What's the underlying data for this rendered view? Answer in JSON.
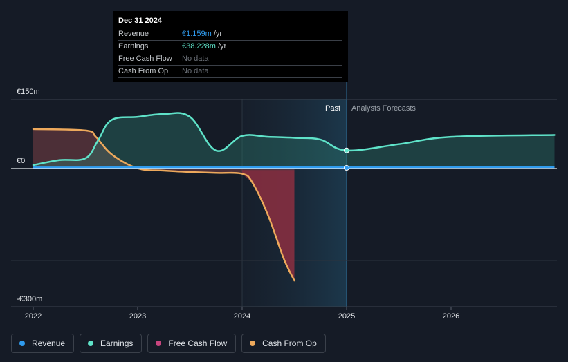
{
  "tooltip": {
    "date": "Dec 31 2024",
    "rows": [
      {
        "label": "Revenue",
        "value": "€1.159m",
        "unit": " /yr",
        "kind": "revenue"
      },
      {
        "label": "Earnings",
        "value": "€38.228m",
        "unit": " /yr",
        "kind": "earnings"
      },
      {
        "label": "Free Cash Flow",
        "value": "No data",
        "unit": "",
        "kind": "nodata"
      },
      {
        "label": "Cash From Op",
        "value": "No data",
        "unit": "",
        "kind": "nodata"
      }
    ]
  },
  "legend": [
    {
      "label": "Revenue",
      "color": "#2f9bee"
    },
    {
      "label": "Earnings",
      "color": "#5fe3c9"
    },
    {
      "label": "Free Cash Flow",
      "color": "#c8457e"
    },
    {
      "label": "Cash From Op",
      "color": "#eda95c"
    }
  ],
  "chart_data": {
    "type": "line",
    "title": "",
    "xlabel": "",
    "ylabel": "",
    "currency_unit": "€m",
    "x_ticks": [
      "2022",
      "2023",
      "2024",
      "2025",
      "2026"
    ],
    "y_ticks": [
      {
        "label": "€150m",
        "value": 150
      },
      {
        "label": "€0",
        "value": 0
      },
      {
        "label": "-€300m",
        "value": -300
      }
    ],
    "ylim": [
      -300,
      150
    ],
    "xlim": [
      2021.85,
      2026.99
    ],
    "region_labels": {
      "past": "Past",
      "forecast": "Analysts Forecasts"
    },
    "past_boundary": 2025.0,
    "shaded_period": [
      2024.0,
      2025.0
    ],
    "grid": true,
    "legend_position": "bottom-left",
    "series": [
      {
        "name": "Revenue",
        "color": "#2f9bee",
        "x": [
          2022.0,
          2022.5,
          2023.0,
          2023.5,
          2024.0,
          2024.5,
          2025.0,
          2025.5,
          2026.0,
          2026.99
        ],
        "values": [
          1.0,
          1.0,
          1.1,
          1.1,
          1.1,
          1.1,
          1.159,
          1.3,
          1.5,
          1.6
        ]
      },
      {
        "name": "Earnings",
        "color": "#5fe3c9",
        "x": [
          2022.0,
          2022.25,
          2022.5,
          2022.62,
          2022.75,
          2023.0,
          2023.25,
          2023.5,
          2023.75,
          2024.0,
          2024.25,
          2024.5,
          2024.75,
          2025.0,
          2025.5,
          2026.0,
          2026.99
        ],
        "values": [
          6,
          17,
          21,
          60,
          105,
          112,
          118,
          112,
          38,
          70,
          68,
          66,
          62,
          38.228,
          52,
          68,
          72
        ]
      },
      {
        "name": "Cash From Op",
        "color": "#eda95c",
        "x": [
          2022.0,
          2022.5,
          2022.6,
          2022.75,
          2023.0,
          2023.25,
          2023.5,
          2023.75,
          2024.0,
          2024.1,
          2024.25,
          2024.4,
          2024.5
        ],
        "values": [
          85,
          82,
          68,
          30,
          -1,
          -6,
          -9,
          -11,
          -13,
          -33,
          -105,
          -200,
          -247
        ]
      },
      {
        "name": "Free Cash Flow",
        "color": "#c8457e",
        "x": [
          2024.0,
          2024.5
        ],
        "values": [
          -13,
          -13
        ]
      }
    ]
  }
}
